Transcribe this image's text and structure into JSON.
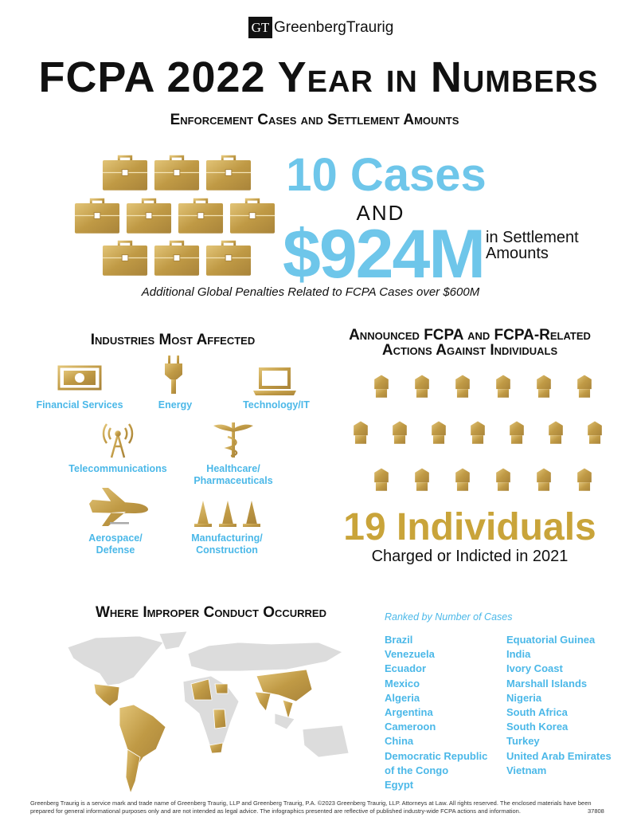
{
  "header": {
    "logo_mark": "GT",
    "logo_text": "GreenbergTraurig",
    "title": "FCPA 2022 Year in Numbers"
  },
  "enforcement": {
    "heading": "Enforcement Cases and Settlement Amounts",
    "cases": "10 Cases",
    "conjunction": "AND",
    "amount": "$924M",
    "amount_note": "in Settlement Amounts",
    "note": "Additional Global Penalties Related to FCPA Cases over $600M"
  },
  "industries": {
    "heading": "Industries Most Affected",
    "items": [
      "Financial Services",
      "Energy",
      "Technology/IT",
      "Telecommunications",
      "Healthcare/ Pharmaceuticals",
      "Aerospace/ Defense",
      "Manufacturing/ Construction"
    ]
  },
  "individuals": {
    "heading": "Announced FCPA and FCPA-Related Actions Against Individuals",
    "count": "19 Individuals",
    "caption": "Charged or Indicted in 2021"
  },
  "locations": {
    "heading": "Where Improper Conduct Occurred",
    "ranking_note": "Ranked by Number of Cases",
    "countries": [
      "Brazil",
      "Venezuela",
      "Ecuador",
      "Mexico",
      "Algeria",
      "Argentina",
      "Cameroon",
      "China",
      "Democratic Republic of the Congo",
      "Egypt",
      "Equatorial Guinea",
      "India",
      "Ivory Coast",
      "Marshall Islands",
      "Nigeria",
      "South Africa",
      "South Korea",
      "Turkey",
      "United Arab Emirates",
      "Vietnam"
    ]
  },
  "footer": {
    "disclaimer": "Greenberg Traurig is a service mark and trade name of Greenberg Traurig, LLP and Greenberg Traurig, P.A. ©2023 Greenberg Traurig, LLP. Attorneys at Law. All rights reserved. The enclosed materials have been prepared for general informational purposes only and are not intended as legal advice. The infographics presented are reflective of published industry-wide FCPA actions and information.",
    "code": "37808"
  }
}
